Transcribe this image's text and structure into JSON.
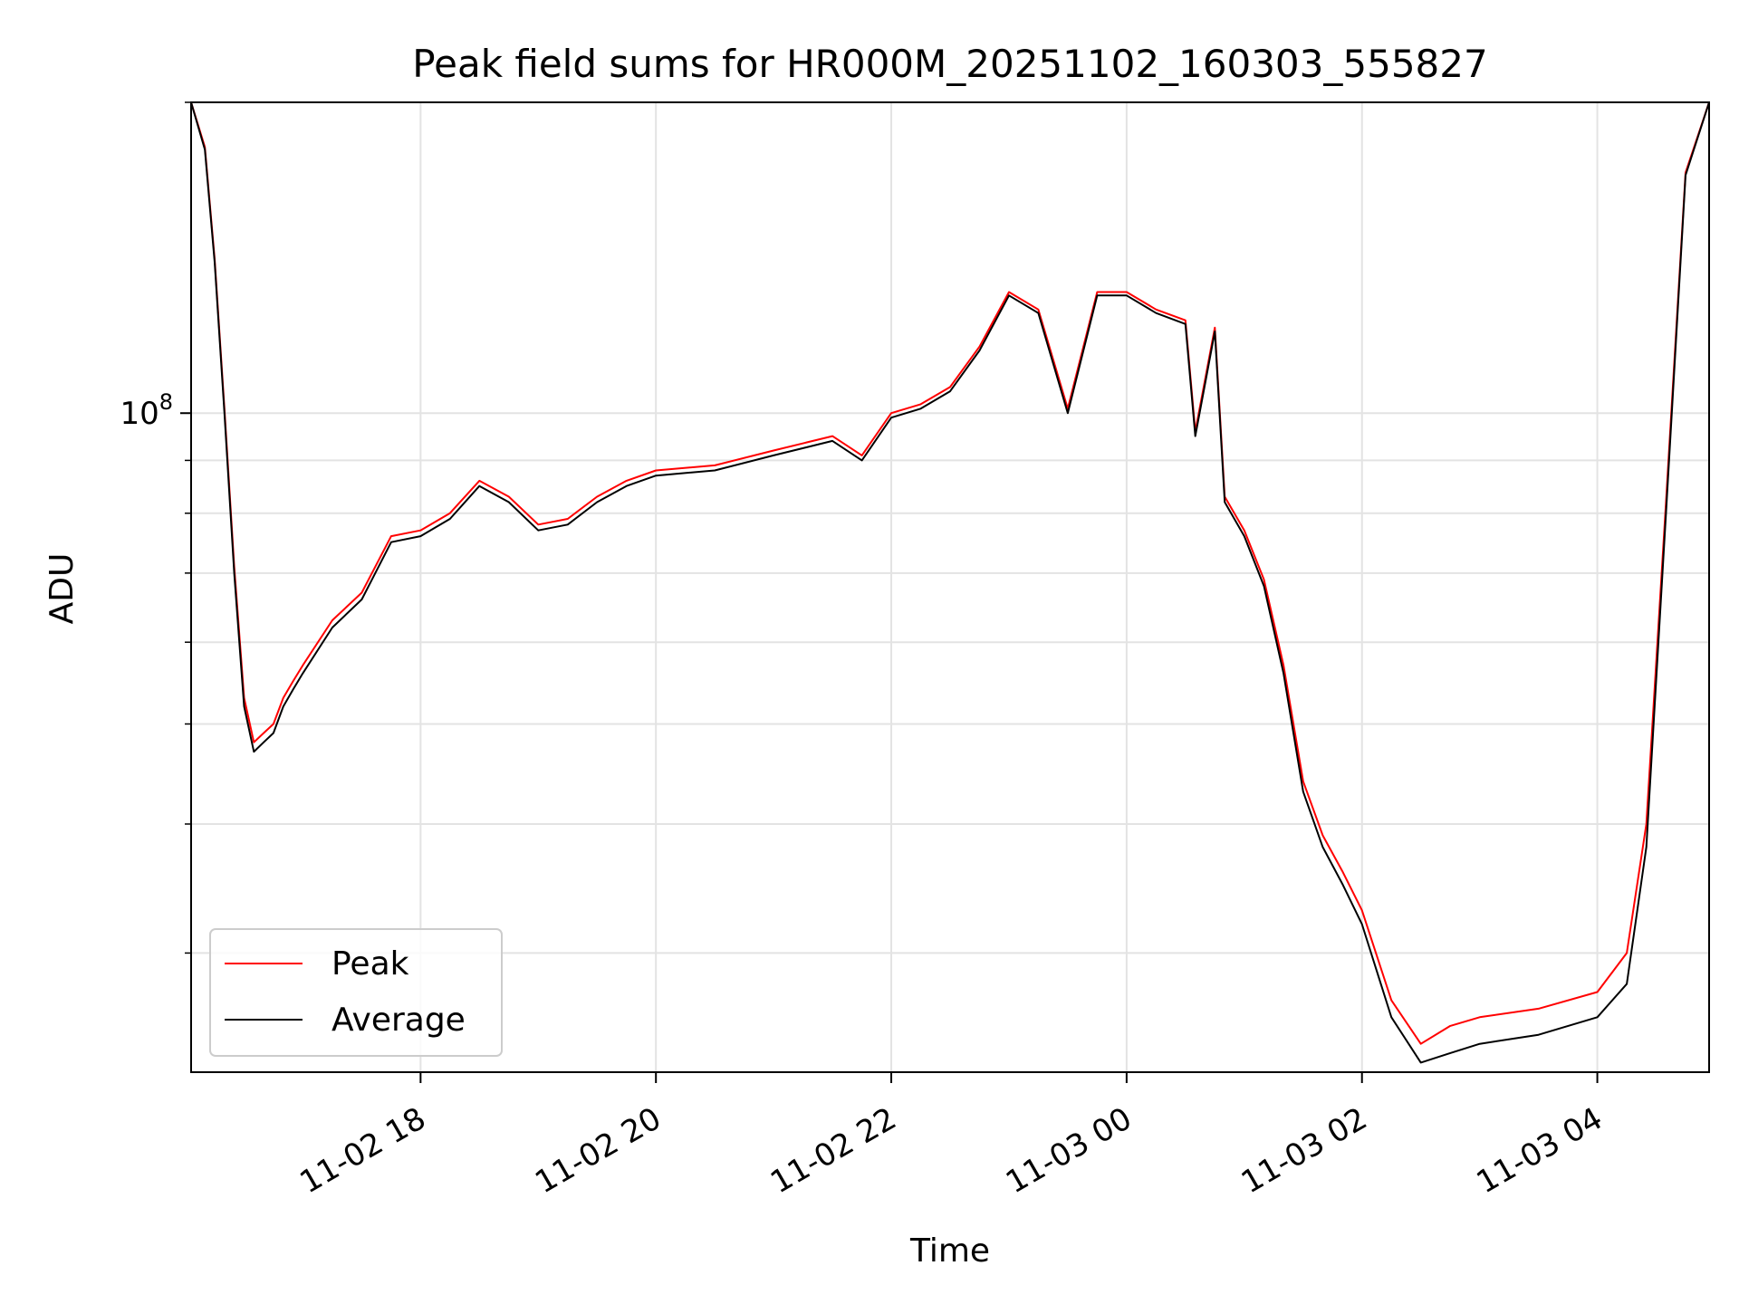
{
  "chart_data": {
    "type": "line",
    "title": "Peak field sums for HR000M_20251102_160303_555827",
    "xlabel": "Time",
    "ylabel": "ADU",
    "yscale": "log",
    "ylim": [
      23000000,
      200000000
    ],
    "xlim": [
      "2025-11-02 16:03",
      "2025-11-03 04:57"
    ],
    "x_ticks": [
      "2025-11-02 18:00",
      "2025-11-02 20:00",
      "2025-11-02 22:00",
      "2025-11-03 00:00",
      "2025-11-03 02:00",
      "2025-11-03 04:00"
    ],
    "x_tick_labels": [
      "11-02 18",
      "11-02 20",
      "11-02 22",
      "11-03 00",
      "11-03 02",
      "11-03 04"
    ],
    "y_major_ticks": [
      100000000
    ],
    "y_major_tick_label_mantissa": "10",
    "y_major_tick_label_exponent": "8",
    "y_minor_ticks": [
      30000000,
      40000000,
      50000000,
      60000000,
      70000000,
      80000000,
      90000000,
      200000000
    ],
    "grid": true,
    "legend_position": "lower-left",
    "colors": {
      "Peak": "#ff0000",
      "Average": "#000000"
    },
    "series": [
      {
        "name": "Average",
        "x": [
          "2025-11-02 16:03",
          "2025-11-02 16:10",
          "2025-11-02 16:15",
          "2025-11-02 16:20",
          "2025-11-02 16:25",
          "2025-11-02 16:30",
          "2025-11-02 16:35",
          "2025-11-02 16:40",
          "2025-11-02 16:45",
          "2025-11-02 16:50",
          "2025-11-02 16:55",
          "2025-11-02 17:00",
          "2025-11-02 17:15",
          "2025-11-02 17:30",
          "2025-11-02 17:45",
          "2025-11-02 18:00",
          "2025-11-02 18:15",
          "2025-11-02 18:30",
          "2025-11-02 18:45",
          "2025-11-02 19:00",
          "2025-11-02 19:15",
          "2025-11-02 19:30",
          "2025-11-02 19:45",
          "2025-11-02 20:00",
          "2025-11-02 20:30",
          "2025-11-02 21:00",
          "2025-11-02 21:30",
          "2025-11-02 21:45",
          "2025-11-02 22:00",
          "2025-11-02 22:15",
          "2025-11-02 22:30",
          "2025-11-02 22:45",
          "2025-11-02 23:00",
          "2025-11-02 23:15",
          "2025-11-02 23:30",
          "2025-11-02 23:45",
          "2025-11-03 00:00",
          "2025-11-03 00:15",
          "2025-11-03 00:30",
          "2025-11-03 00:35",
          "2025-11-03 00:45",
          "2025-11-03 00:50",
          "2025-11-03 01:00",
          "2025-11-03 01:10",
          "2025-11-03 01:20",
          "2025-11-03 01:30",
          "2025-11-03 01:40",
          "2025-11-03 01:50",
          "2025-11-03 02:00",
          "2025-11-03 02:15",
          "2025-11-03 02:30",
          "2025-11-03 02:45",
          "2025-11-03 03:00",
          "2025-11-03 03:30",
          "2025-11-03 04:00",
          "2025-11-03 04:15",
          "2025-11-03 04:25",
          "2025-11-03 04:35",
          "2025-11-03 04:45",
          "2025-11-03 04:57"
        ],
        "values": [
          200000000,
          180000000,
          140000000,
          100000000,
          70000000,
          52000000,
          47000000,
          48000000,
          49000000,
          52000000,
          54000000,
          56000000,
          62000000,
          66000000,
          75000000,
          76000000,
          79000000,
          85000000,
          82000000,
          77000000,
          78000000,
          82000000,
          85000000,
          87000000,
          88000000,
          91000000,
          94000000,
          90000000,
          99000000,
          101000000,
          105000000,
          115000000,
          130000000,
          125000000,
          100000000,
          130000000,
          130000000,
          125000000,
          122000000,
          95000000,
          120000000,
          82000000,
          76000000,
          68000000,
          56000000,
          43000000,
          38000000,
          35000000,
          32000000,
          26000000,
          23500000,
          24000000,
          24500000,
          25000000,
          26000000,
          28000000,
          38000000,
          80000000,
          170000000,
          200000000
        ]
      },
      {
        "name": "Peak",
        "x": [
          "2025-11-02 16:03",
          "2025-11-02 16:10",
          "2025-11-02 16:15",
          "2025-11-02 16:20",
          "2025-11-02 16:25",
          "2025-11-02 16:30",
          "2025-11-02 16:35",
          "2025-11-02 16:40",
          "2025-11-02 16:45",
          "2025-11-02 16:50",
          "2025-11-02 16:55",
          "2025-11-02 17:00",
          "2025-11-02 17:15",
          "2025-11-02 17:30",
          "2025-11-02 17:45",
          "2025-11-02 18:00",
          "2025-11-02 18:15",
          "2025-11-02 18:30",
          "2025-11-02 18:45",
          "2025-11-02 19:00",
          "2025-11-02 19:15",
          "2025-11-02 19:30",
          "2025-11-02 19:45",
          "2025-11-02 20:00",
          "2025-11-02 20:30",
          "2025-11-02 21:00",
          "2025-11-02 21:30",
          "2025-11-02 21:45",
          "2025-11-02 22:00",
          "2025-11-02 22:15",
          "2025-11-02 22:30",
          "2025-11-02 22:45",
          "2025-11-02 23:00",
          "2025-11-02 23:15",
          "2025-11-02 23:30",
          "2025-11-02 23:45",
          "2025-11-03 00:00",
          "2025-11-03 00:15",
          "2025-11-03 00:30",
          "2025-11-03 00:35",
          "2025-11-03 00:45",
          "2025-11-03 00:50",
          "2025-11-03 01:00",
          "2025-11-03 01:10",
          "2025-11-03 01:20",
          "2025-11-03 01:30",
          "2025-11-03 01:40",
          "2025-11-03 01:50",
          "2025-11-03 02:00",
          "2025-11-03 02:15",
          "2025-11-03 02:30",
          "2025-11-03 02:45",
          "2025-11-03 03:00",
          "2025-11-03 03:30",
          "2025-11-03 04:00",
          "2025-11-03 04:15",
          "2025-11-03 04:25",
          "2025-11-03 04:35",
          "2025-11-03 04:45",
          "2025-11-03 04:57"
        ],
        "values": [
          200000000,
          181000000,
          141000000,
          101000000,
          71000000,
          53000000,
          48000000,
          49000000,
          50000000,
          53000000,
          55000000,
          57000000,
          63000000,
          67000000,
          76000000,
          77000000,
          80000000,
          86000000,
          83000000,
          78000000,
          79000000,
          83000000,
          86000000,
          88000000,
          89000000,
          92000000,
          95000000,
          91000000,
          100000000,
          102000000,
          106000000,
          116000000,
          131000000,
          126000000,
          101000000,
          131000000,
          131000000,
          126000000,
          123000000,
          96000000,
          121000000,
          83000000,
          77000000,
          69000000,
          57000000,
          44000000,
          39000000,
          36000000,
          33000000,
          27000000,
          24500000,
          25500000,
          26000000,
          26500000,
          27500000,
          30000000,
          40000000,
          82000000,
          171000000,
          200000000
        ]
      }
    ]
  }
}
